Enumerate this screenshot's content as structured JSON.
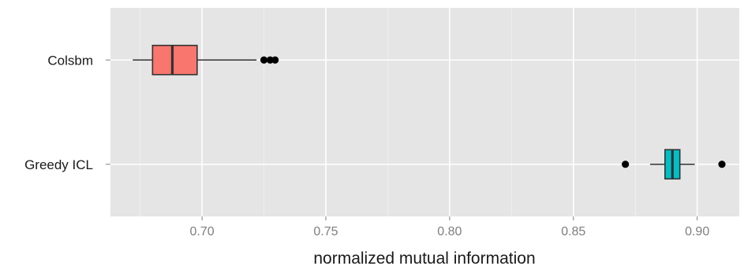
{
  "chart_data": {
    "type": "boxplot",
    "orientation": "horizontal",
    "xlabel": "normalized mutual information",
    "ylabel": "",
    "xlim": [
      0.663,
      0.917
    ],
    "x_ticks": [
      {
        "value": 0.7,
        "label": "0.70"
      },
      {
        "value": 0.75,
        "label": "0.75"
      },
      {
        "value": 0.8,
        "label": "0.80"
      },
      {
        "value": 0.85,
        "label": "0.85"
      },
      {
        "value": 0.9,
        "label": "0.90"
      }
    ],
    "grid": true,
    "categories": [
      "Colsbm",
      "Greedy ICL"
    ],
    "boxes": [
      {
        "category": "Colsbm",
        "whisker_low": 0.672,
        "q1": 0.68,
        "median": 0.688,
        "q3": 0.698,
        "whisker_high": 0.722,
        "outliers": [
          0.725,
          0.7275,
          0.7295
        ],
        "color": "#F8766D"
      },
      {
        "category": "Greedy ICL",
        "whisker_low": 0.881,
        "q1": 0.887,
        "median": 0.89,
        "q3": 0.893,
        "whisker_high": 0.899,
        "outliers": [
          0.871,
          0.91
        ],
        "color": "#00BFC4"
      }
    ],
    "panel_color": "#E5E5E5",
    "grid_color": "#FFFFFF"
  }
}
